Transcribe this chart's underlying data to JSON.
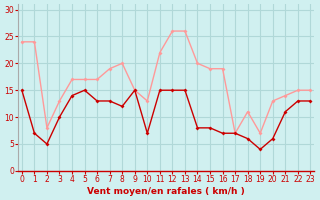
{
  "x": [
    0,
    1,
    2,
    3,
    4,
    5,
    6,
    7,
    8,
    9,
    10,
    11,
    12,
    13,
    14,
    15,
    16,
    17,
    18,
    19,
    20,
    21,
    22,
    23
  ],
  "wind_avg": [
    15,
    7,
    5,
    10,
    14,
    15,
    13,
    13,
    12,
    15,
    7,
    15,
    15,
    15,
    8,
    8,
    7,
    7,
    6,
    4,
    6,
    11,
    13,
    13
  ],
  "wind_gust": [
    24,
    24,
    8,
    13,
    17,
    17,
    17,
    19,
    20,
    15,
    13,
    22,
    26,
    26,
    20,
    19,
    19,
    7,
    11,
    7,
    13,
    14,
    15,
    15
  ],
  "bg_color": "#d0f0f0",
  "grid_color": "#b0d8d8",
  "avg_color": "#cc0000",
  "gust_color": "#ff9999",
  "xlabel": "Vent moyen/en rafales ( km/h )",
  "xlabel_color": "#cc0000",
  "yticks": [
    0,
    5,
    10,
    15,
    20,
    25,
    30
  ],
  "xticks": [
    0,
    1,
    2,
    3,
    4,
    5,
    6,
    7,
    8,
    9,
    10,
    11,
    12,
    13,
    14,
    15,
    16,
    17,
    18,
    19,
    20,
    21,
    22,
    23
  ],
  "ylim": [
    0,
    31
  ],
  "xlim": [
    -0.3,
    23.3
  ]
}
